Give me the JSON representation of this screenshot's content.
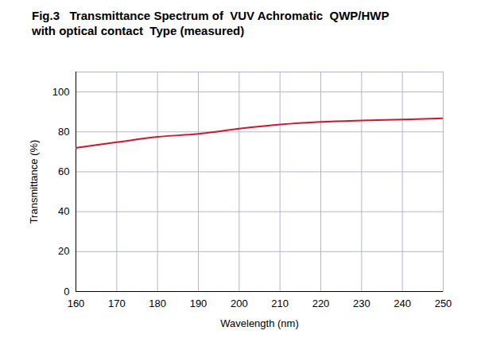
{
  "chart_data": {
    "type": "line",
    "title": "Fig.3   Transmittance Spectrum of  VUV Achromatic  QWP/HWP\nwith optical contact  Type (measured)",
    "x_label": "Wavelength (nm)",
    "y_label": "Transmittance (%)",
    "x": [
      160,
      170,
      180,
      190,
      200,
      210,
      220,
      230,
      240,
      250
    ],
    "series": [
      {
        "name": "Transmittance",
        "color": "#e0102a",
        "values": [
          72,
          74.8,
          77.5,
          79,
          81.6,
          83.7,
          85,
          85.7,
          86.2,
          86.8
        ]
      }
    ],
    "xlim": [
      160,
      250
    ],
    "xticks": [
      160,
      170,
      180,
      190,
      200,
      210,
      220,
      230,
      240,
      250
    ],
    "ylim": [
      0,
      110
    ],
    "yticks": [
      0,
      20,
      40,
      60,
      80,
      100
    ],
    "grid": true
  }
}
